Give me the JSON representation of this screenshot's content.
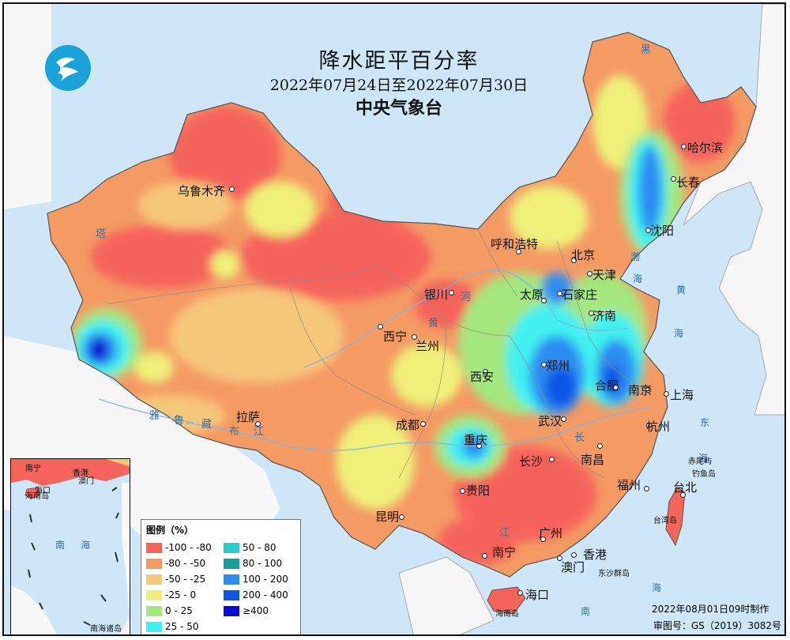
{
  "map": {
    "title": "降水距平百分率",
    "period": "2022年07月24日至2022年07月30日",
    "agency": "中央气象台",
    "made_by": "2022年08月01日09时制作",
    "review_no": "审图号：GS（2019）3082号"
  },
  "legend": {
    "title": "图例（%）",
    "items": [
      {
        "label": "-100 - -80",
        "color": "#f4645a"
      },
      {
        "label": "-80 - -50",
        "color": "#f49a63"
      },
      {
        "label": "-50 - -25",
        "color": "#f7c77a"
      },
      {
        "label": "-25 - 0",
        "color": "#eef07a"
      },
      {
        "label": "0 - 25",
        "color": "#a4e87e"
      },
      {
        "label": "25 - 50",
        "color": "#3ff0f0"
      },
      {
        "label": "50 - 80",
        "color": "#29cdd0"
      },
      {
        "label": "80 - 100",
        "color": "#139f9f"
      },
      {
        "label": "100 - 200",
        "color": "#2d8df0"
      },
      {
        "label": "200 - 400",
        "color": "#1155e6"
      },
      {
        "label": "≥400",
        "color": "#0a0ad6"
      }
    ]
  },
  "cities": [
    {
      "name": "乌鲁木齐"
    },
    {
      "name": "拉萨"
    },
    {
      "name": "西宁"
    },
    {
      "name": "兰州"
    },
    {
      "name": "银川"
    },
    {
      "name": "呼和浩特"
    },
    {
      "name": "北京"
    },
    {
      "name": "天津"
    },
    {
      "name": "石家庄"
    },
    {
      "name": "太原"
    },
    {
      "name": "济南"
    },
    {
      "name": "郑州"
    },
    {
      "name": "西安"
    },
    {
      "name": "成都"
    },
    {
      "name": "重庆"
    },
    {
      "name": "武汉"
    },
    {
      "name": "合肥"
    },
    {
      "name": "南京"
    },
    {
      "name": "上海"
    },
    {
      "name": "杭州"
    },
    {
      "name": "长沙"
    },
    {
      "name": "南昌"
    },
    {
      "name": "福州"
    },
    {
      "name": "台北"
    },
    {
      "name": "贵阳"
    },
    {
      "name": "昆明"
    },
    {
      "name": "南宁"
    },
    {
      "name": "广州"
    },
    {
      "name": "香港"
    },
    {
      "name": "澳门"
    },
    {
      "name": "海口"
    },
    {
      "name": "沈阳"
    },
    {
      "name": "长春"
    },
    {
      "name": "哈尔滨"
    }
  ],
  "seas": [
    "渤",
    "海",
    "黄",
    "海",
    "东",
    "海",
    "南",
    "海"
  ],
  "islands": [
    "赤尾屿",
    "钓鱼岛",
    "台湾岛",
    "东沙群岛",
    "海南岛"
  ],
  "rivers": [
    "黄",
    "河",
    "长",
    "江",
    "雅",
    "鲁",
    "藏",
    "布",
    "江",
    "黑",
    "塔"
  ],
  "inset": {
    "labels": [
      "南宁",
      "香港",
      "海口",
      "澳门",
      "海南岛",
      "南",
      "海",
      "南海诸岛"
    ]
  }
}
